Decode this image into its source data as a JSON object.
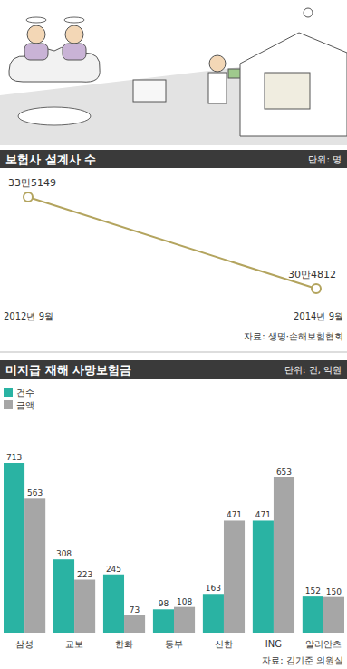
{
  "chart_data": [
    {
      "type": "line",
      "title": "보험사 설계사 수",
      "subtitle": "단위: 명",
      "categories": [
        "2012년 9월",
        "2014년 9월"
      ],
      "values": [
        335149,
        304812
      ],
      "value_labels": [
        "33만5149",
        "30만4812"
      ],
      "data_labels": true,
      "tick_labels": "x",
      "color": "#b3a45e",
      "marker": "circle",
      "source": "자료: 생명·손해보험협회"
    },
    {
      "type": "bar",
      "title": "미지급 재해 사망보험금",
      "subtitle": "단위: 건, 억원",
      "categories": [
        "삼성",
        "교보",
        "한화",
        "동부",
        "신한",
        "ING",
        "알리안츠"
      ],
      "series": [
        {
          "name": "건수",
          "color": "#2ab3a3",
          "values": [
            713,
            308,
            245,
            98,
            163,
            471,
            152
          ]
        },
        {
          "name": "금액",
          "color": "#a6a6a6",
          "values": [
            563,
            223,
            73,
            108,
            471,
            653,
            150
          ]
        }
      ],
      "data_labels": true,
      "tick_labels": "x",
      "legend": "top-left",
      "source": "자료: 김기준 의원실"
    }
  ]
}
